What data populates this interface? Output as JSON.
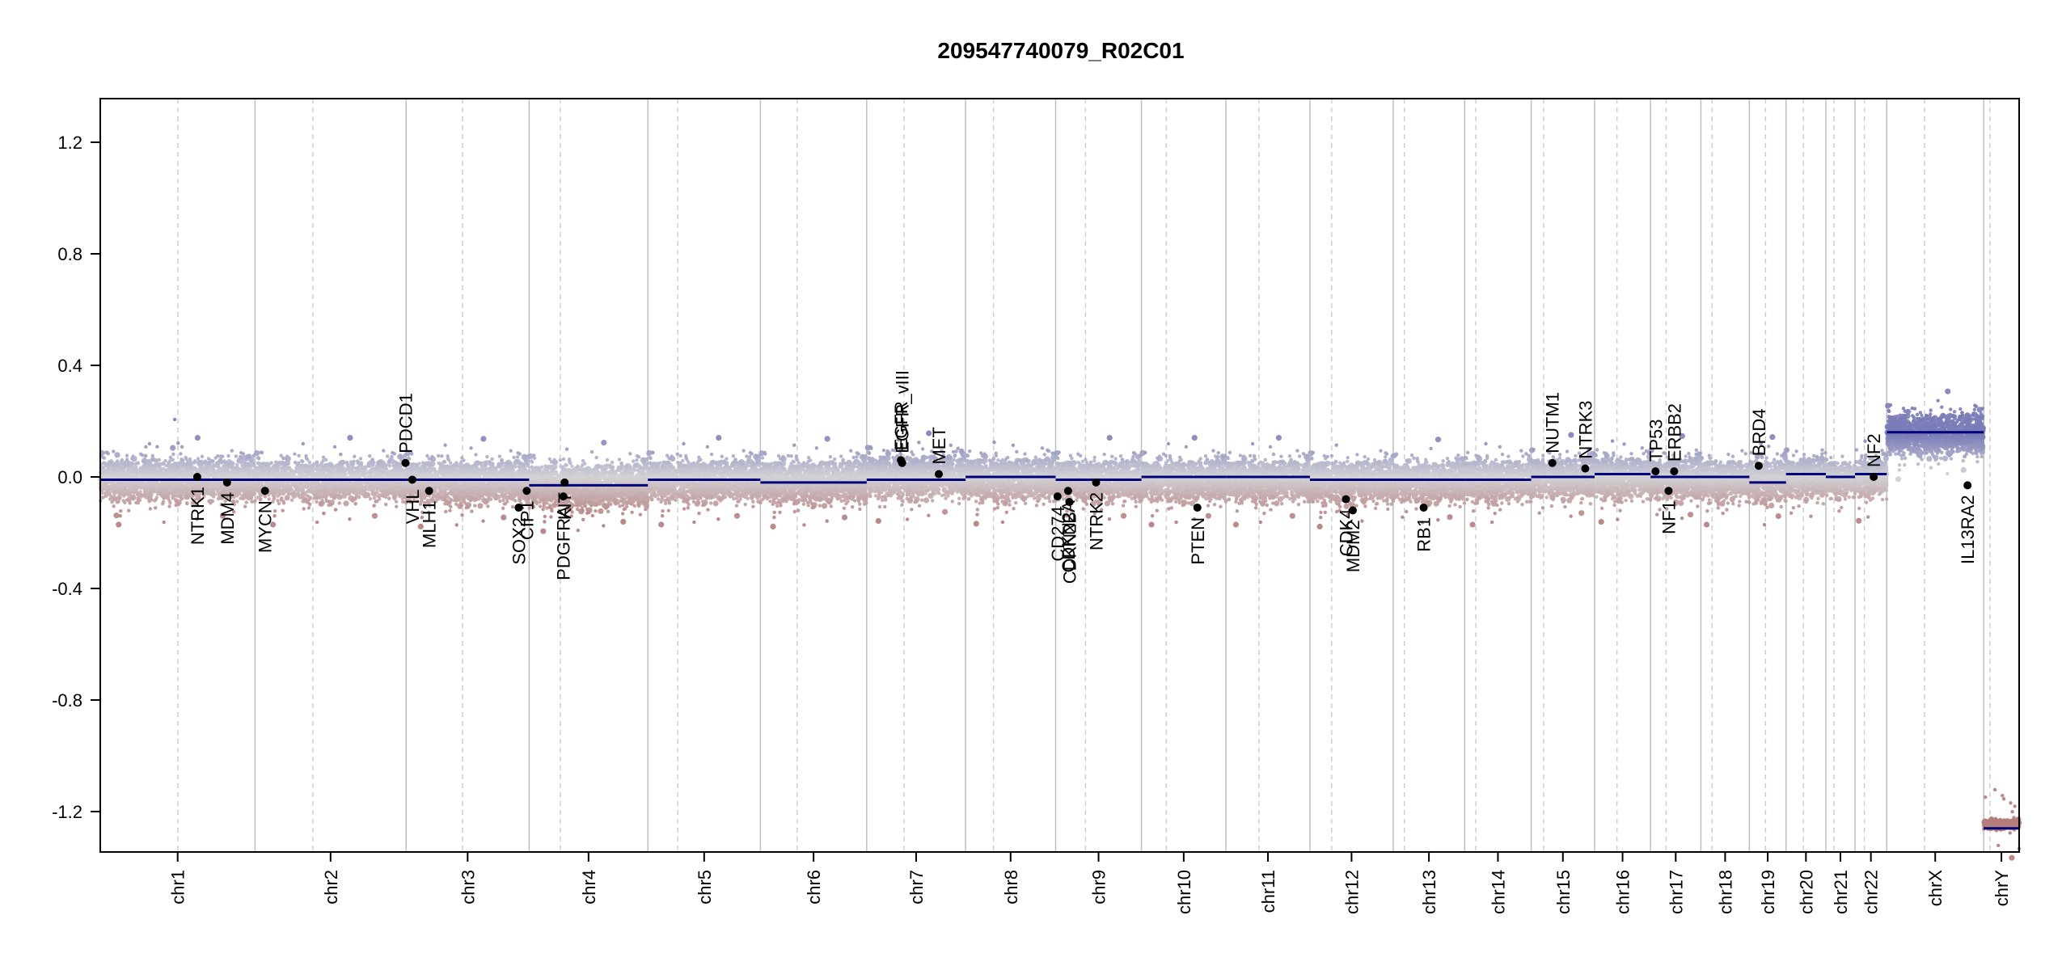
{
  "chart_data": {
    "type": "scatter",
    "title": "209547740079_R02C01",
    "xlabel": "",
    "ylabel": "",
    "ylim": [
      -1.35,
      1.35
    ],
    "yticks": [
      -1.2,
      -0.8,
      -0.4,
      0.0,
      0.4,
      0.8,
      1.2
    ],
    "grid": "vertical chromosome boundaries (solid) and centromeres (dashed)",
    "chromosomes": [
      {
        "name": "chr1",
        "start": 0,
        "end": 249,
        "cen": 125,
        "seg": -0.01,
        "lo": -0.12,
        "hi": 0.1
      },
      {
        "name": "chr2",
        "start": 249,
        "end": 492,
        "cen": 342,
        "seg": -0.01,
        "lo": -0.12,
        "hi": 0.1
      },
      {
        "name": "chr3",
        "start": 492,
        "end": 690,
        "cen": 583,
        "seg": -0.01,
        "lo": -0.13,
        "hi": 0.1
      },
      {
        "name": "chr4",
        "start": 690,
        "end": 881,
        "cen": 740,
        "seg": -0.03,
        "lo": -0.15,
        "hi": 0.09
      },
      {
        "name": "chr5",
        "start": 881,
        "end": 1062,
        "cen": 929,
        "seg": -0.01,
        "lo": -0.12,
        "hi": 0.1
      },
      {
        "name": "chr6",
        "start": 1062,
        "end": 1233,
        "cen": 1121,
        "seg": -0.02,
        "lo": -0.13,
        "hi": 0.1
      },
      {
        "name": "chr7",
        "start": 1233,
        "end": 1392,
        "cen": 1293,
        "seg": -0.01,
        "lo": -0.11,
        "hi": 0.12
      },
      {
        "name": "chr8",
        "start": 1392,
        "end": 1537,
        "cen": 1437,
        "seg": 0.0,
        "lo": -0.12,
        "hi": 0.11
      },
      {
        "name": "chr9",
        "start": 1537,
        "end": 1675,
        "cen": 1585,
        "seg": -0.01,
        "lo": -0.12,
        "hi": 0.1
      },
      {
        "name": "chr10",
        "start": 1675,
        "end": 1811,
        "cen": 1715,
        "seg": 0.0,
        "lo": -0.12,
        "hi": 0.1
      },
      {
        "name": "chr11",
        "start": 1811,
        "end": 1946,
        "cen": 1864,
        "seg": 0.0,
        "lo": -0.12,
        "hi": 0.1
      },
      {
        "name": "chr12",
        "start": 1946,
        "end": 2080,
        "cen": 1981,
        "seg": -0.01,
        "lo": -0.13,
        "hi": 0.1
      },
      {
        "name": "chr13",
        "start": 2080,
        "end": 2195,
        "cen": 2098,
        "seg": -0.01,
        "lo": -0.12,
        "hi": 0.09
      },
      {
        "name": "chr14",
        "start": 2195,
        "end": 2302,
        "cen": 2213,
        "seg": -0.01,
        "lo": -0.12,
        "hi": 0.1
      },
      {
        "name": "chr15",
        "start": 2302,
        "end": 2404,
        "cen": 2322,
        "seg": 0.0,
        "lo": -0.11,
        "hi": 0.11
      },
      {
        "name": "chr16",
        "start": 2404,
        "end": 2494,
        "cen": 2440,
        "seg": 0.01,
        "lo": -0.11,
        "hi": 0.11
      },
      {
        "name": "chr17",
        "start": 2494,
        "end": 2575,
        "cen": 2519,
        "seg": 0.0,
        "lo": -0.12,
        "hi": 0.11
      },
      {
        "name": "chr18",
        "start": 2575,
        "end": 2653,
        "cen": 2593,
        "seg": 0.0,
        "lo": -0.12,
        "hi": 0.1
      },
      {
        "name": "chr19",
        "start": 2653,
        "end": 2712,
        "cen": 2679,
        "seg": -0.02,
        "lo": -0.13,
        "hi": 0.11
      },
      {
        "name": "chr20",
        "start": 2712,
        "end": 2776,
        "cen": 2740,
        "seg": 0.01,
        "lo": -0.11,
        "hi": 0.11
      },
      {
        "name": "chr21",
        "start": 2776,
        "end": 2823,
        "cen": 2789,
        "seg": 0.0,
        "lo": -0.1,
        "hi": 0.09
      },
      {
        "name": "chr22",
        "start": 2823,
        "end": 2874,
        "cen": 2838,
        "seg": 0.01,
        "lo": -0.1,
        "hi": 0.1
      },
      {
        "name": "chrX",
        "start": 2874,
        "end": 3030,
        "cen": 2935,
        "seg": 0.16,
        "lo": 0.04,
        "hi": 0.27
      },
      {
        "name": "chrY",
        "start": 3030,
        "end": 3087,
        "cen": 3040,
        "seg": -1.26,
        "lo": -1.27,
        "hi": -1.22
      }
    ],
    "genes": [
      {
        "name": "NTRK1",
        "pos": 156,
        "y": 0.0,
        "side": "below"
      },
      {
        "name": "MDM4",
        "pos": 204,
        "y": -0.02,
        "side": "below"
      },
      {
        "name": "MYCN",
        "pos": 265,
        "y": -0.05,
        "side": "below"
      },
      {
        "name": "PDCD1",
        "pos": 491,
        "y": 0.05,
        "side": "above"
      },
      {
        "name": "VHL",
        "pos": 502,
        "y": -0.01,
        "side": "below"
      },
      {
        "name": "MLH1",
        "pos": 529,
        "y": -0.05,
        "side": "below"
      },
      {
        "name": "SOX2",
        "pos": 673,
        "y": -0.11,
        "side": "below"
      },
      {
        "name": "CIP1",
        "pos": 686,
        "y": -0.05,
        "side": "below"
      },
      {
        "name": "PDGFRA",
        "pos": 745,
        "y": -0.07,
        "side": "below"
      },
      {
        "name": "KIT",
        "pos": 747,
        "y": -0.02,
        "side": "below"
      },
      {
        "name": "EGFR",
        "pos": 1288,
        "y": 0.06,
        "side": "above"
      },
      {
        "name": "EGFR_vIII",
        "pos": 1290,
        "y": 0.05,
        "side": "above"
      },
      {
        "name": "MET",
        "pos": 1349,
        "y": 0.01,
        "side": "above"
      },
      {
        "name": "CD274",
        "pos": 1540,
        "y": -0.07,
        "side": "below"
      },
      {
        "name": "CDKN2A",
        "pos": 1557,
        "y": -0.05,
        "side": "below"
      },
      {
        "name": "CDKN2B",
        "pos": 1559,
        "y": -0.09,
        "side": "below"
      },
      {
        "name": "NTRK2",
        "pos": 1602,
        "y": -0.02,
        "side": "below"
      },
      {
        "name": "PTEN",
        "pos": 1765,
        "y": -0.11,
        "side": "below"
      },
      {
        "name": "CDK4",
        "pos": 2004,
        "y": -0.08,
        "side": "below"
      },
      {
        "name": "MDM2",
        "pos": 2015,
        "y": -0.12,
        "side": "below"
      },
      {
        "name": "RB1",
        "pos": 2129,
        "y": -0.11,
        "side": "below"
      },
      {
        "name": "NUTM1",
        "pos": 2336,
        "y": 0.05,
        "side": "above"
      },
      {
        "name": "NTRK3",
        "pos": 2389,
        "y": 0.03,
        "side": "above"
      },
      {
        "name": "TP53",
        "pos": 2502,
        "y": 0.02,
        "side": "above"
      },
      {
        "name": "NF1",
        "pos": 2523,
        "y": -0.05,
        "side": "below"
      },
      {
        "name": "ERBB2",
        "pos": 2532,
        "y": 0.02,
        "side": "above"
      },
      {
        "name": "BRD4",
        "pos": 2668,
        "y": 0.04,
        "side": "above"
      },
      {
        "name": "NF2",
        "pos": 2853,
        "y": 0.0,
        "side": "above"
      },
      {
        "name": "IL13RA2",
        "pos": 3004,
        "y": -0.03,
        "side": "below"
      }
    ],
    "colors": {
      "gain": "#7c7db8",
      "neutral": "#d2d2d6",
      "loss": "#b57c7c",
      "segment": "#00007a",
      "gene_dot": "#000000",
      "centromere": "#cfcfcf",
      "boundary": "#bdbdbd"
    }
  }
}
